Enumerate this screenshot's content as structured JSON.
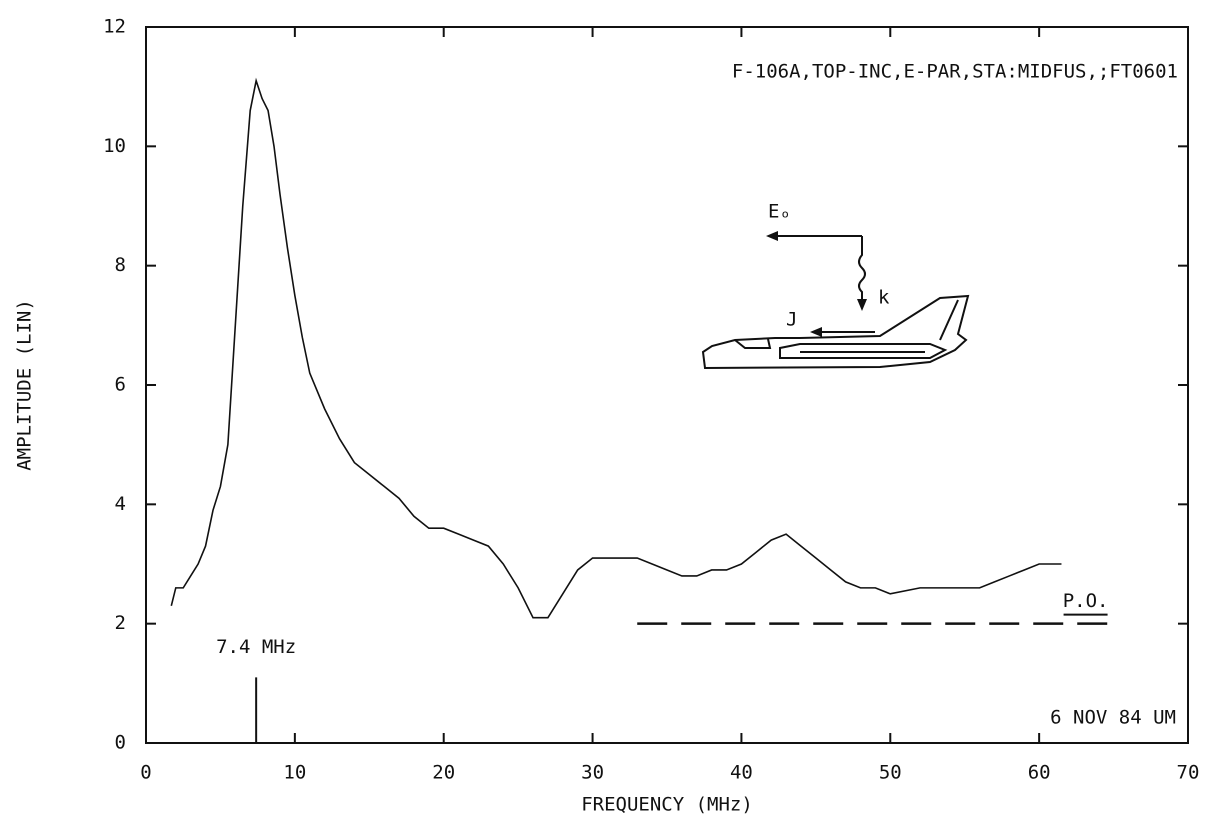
{
  "chart_data": {
    "type": "line",
    "title": "F-106A,TOP-INC,E-PAR,STA:MIDFUS,;FT0601",
    "xlabel": "FREQUENCY (MHz)",
    "ylabel": "AMPLITUDE (LIN)",
    "xlim": [
      0,
      70
    ],
    "ylim": [
      0,
      12
    ],
    "xticks": [
      0,
      10,
      20,
      30,
      40,
      50,
      60,
      70
    ],
    "yticks": [
      0,
      2,
      4,
      6,
      8,
      10,
      12
    ],
    "series": [
      {
        "color": "#111111",
        "dash": false,
        "x": [
          1.7,
          2.0,
          2.5,
          3.0,
          3.5,
          4.0,
          4.5,
          5.0,
          5.5,
          6.0,
          6.5,
          7.0,
          7.4,
          7.8,
          8.2,
          8.6,
          9.0,
          9.5,
          10.0,
          10.5,
          11.0,
          12.0,
          13.0,
          14.0,
          15.0,
          16.0,
          17.0,
          18.0,
          19.0,
          20.0,
          21.0,
          22.0,
          23.0,
          24.0,
          25.0,
          26.0,
          27.0,
          28.0,
          29.0,
          30.0,
          31.0,
          32.0,
          33.0,
          34.0,
          35.0,
          36.0,
          37.0,
          38.0,
          39.0,
          40.0,
          41.0,
          42.0,
          43.0,
          44.0,
          45.0,
          46.0,
          47.0,
          48.0,
          49.0,
          50.0,
          52.0,
          54.0,
          56.0,
          57.0,
          58.0,
          59.0,
          60.0,
          61.5
        ],
        "values": [
          2.3,
          2.6,
          2.6,
          2.8,
          3.0,
          3.3,
          3.9,
          4.3,
          5.0,
          7.0,
          9.0,
          10.6,
          11.1,
          10.8,
          10.6,
          10.0,
          9.2,
          8.3,
          7.5,
          6.8,
          6.2,
          5.6,
          5.1,
          4.7,
          4.5,
          4.3,
          4.1,
          3.8,
          3.6,
          3.6,
          3.5,
          3.4,
          3.3,
          3.0,
          2.6,
          2.1,
          2.1,
          2.5,
          2.9,
          3.1,
          3.1,
          3.1,
          3.1,
          3.0,
          2.9,
          2.8,
          2.8,
          2.9,
          2.9,
          3.0,
          3.2,
          3.4,
          3.5,
          3.3,
          3.1,
          2.9,
          2.7,
          2.6,
          2.6,
          2.5,
          2.6,
          2.6,
          2.6,
          2.7,
          2.8,
          2.9,
          3.0,
          3.0
        ]
      },
      {
        "name": "P.O.",
        "color": "#111111",
        "dash": true,
        "x": [
          33,
          65
        ],
        "values": [
          2,
          2
        ]
      }
    ],
    "marker": {
      "x": 7.4,
      "height": 1.1,
      "label": "7.4 MHz"
    },
    "footnote": "6 NOV 84 UM",
    "diagram_labels": [
      "Eₒ",
      "k",
      "J"
    ]
  }
}
